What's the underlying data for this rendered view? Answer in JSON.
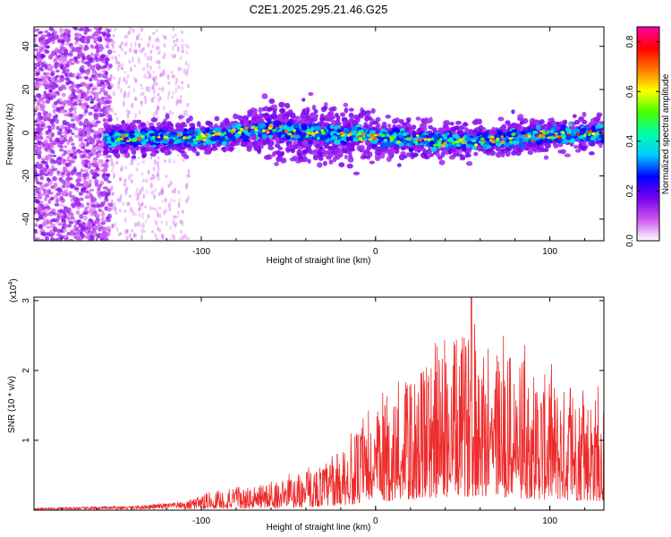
{
  "title": "C2E1.2025.295.21.46.G25",
  "chart_data": [
    {
      "type": "heatmap",
      "title": "C2E1.2025.295.21.46.G25",
      "xlabel": "Height of straight line (km)",
      "ylabel": "Frequency (Hz)",
      "xlim": [
        -196,
        131
      ],
      "ylim": [
        -50,
        49
      ],
      "x_ticks": [
        -100,
        0,
        100
      ],
      "y_ticks": [
        -40,
        -20,
        0,
        20,
        40
      ],
      "colorbar": {
        "label": "Normalized spectral amplitude",
        "range": [
          0,
          0.86
        ],
        "ticks": [
          0.0,
          0.2,
          0.4,
          0.6,
          0.8
        ],
        "colors": [
          "#ffffff",
          "#cc55ee",
          "#7700ee",
          "#0000ff",
          "#00ccff",
          "#00ffaa",
          "#44ff00",
          "#ffff00",
          "#ff7700",
          "#ff0000",
          "#ff00aa"
        ]
      },
      "ridge_profile": [
        {
          "x": -155,
          "y": -3
        },
        {
          "x": -100,
          "y": -2
        },
        {
          "x": -60,
          "y": 2
        },
        {
          "x": -40,
          "y": 0
        },
        {
          "x": 0,
          "y": -2
        },
        {
          "x": 50,
          "y": -4
        },
        {
          "x": 100,
          "y": -1
        },
        {
          "x": 131,
          "y": 0
        }
      ]
    },
    {
      "type": "line",
      "xlabel": "Height of straight line (km)",
      "ylabel": "SNR (10 * v/v)",
      "y_multiplier": "(x10",
      "y_multiplier_exp": "4",
      "y_multiplier_close": ")",
      "xlim": [
        -196,
        131
      ],
      "ylim": [
        0,
        3.05
      ],
      "x_ticks": [
        -100,
        0,
        100
      ],
      "y_ticks": [
        1,
        2,
        3
      ],
      "series": [
        {
          "name": "SNR",
          "color": "#ee2b2b",
          "envelope": [
            {
              "x": -196,
              "y": 0.03
            },
            {
              "x": -160,
              "y": 0.05
            },
            {
              "x": -140,
              "y": 0.06
            },
            {
              "x": -110,
              "y": 0.12
            },
            {
              "x": -90,
              "y": 0.28
            },
            {
              "x": -70,
              "y": 0.32
            },
            {
              "x": -50,
              "y": 0.45
            },
            {
              "x": -30,
              "y": 0.65
            },
            {
              "x": -15,
              "y": 0.95
            },
            {
              "x": 0,
              "y": 1.4
            },
            {
              "x": 20,
              "y": 1.8
            },
            {
              "x": 40,
              "y": 2.3
            },
            {
              "x": 55,
              "y": 2.5
            },
            {
              "x": 70,
              "y": 2.3
            },
            {
              "x": 90,
              "y": 2.0
            },
            {
              "x": 110,
              "y": 1.7
            },
            {
              "x": 131,
              "y": 1.6
            }
          ],
          "peak": {
            "x": 55,
            "y": 3.05
          }
        }
      ]
    }
  ]
}
